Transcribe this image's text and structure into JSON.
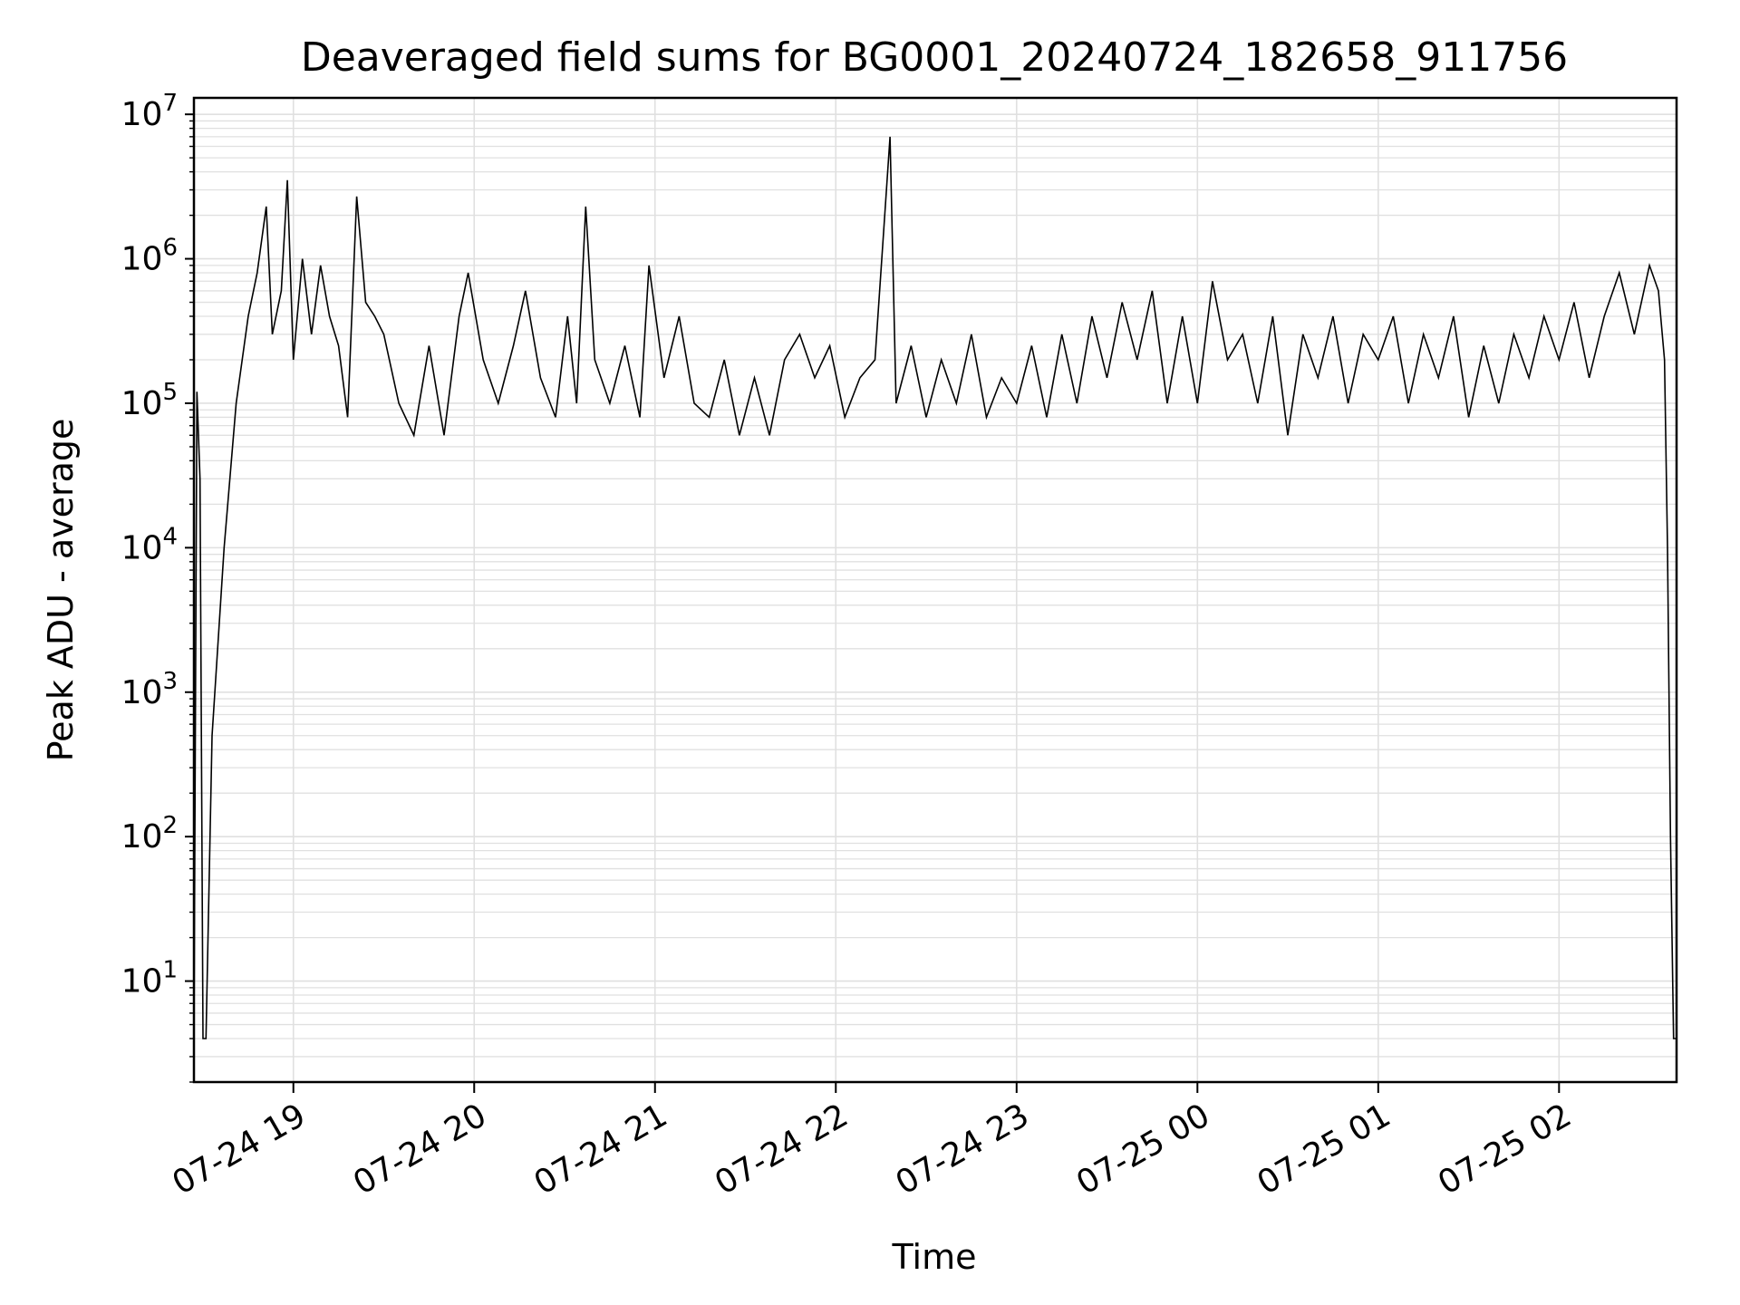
{
  "chart_data": {
    "type": "line",
    "title": "Deaveraged field sums for BG0001_20240724_182658_911756",
    "xlabel": "Time",
    "ylabel": "Peak ADU - average",
    "x_scale": "time",
    "y_scale": "log",
    "xlim": [
      "07-24 18:27",
      "07-25 02:39"
    ],
    "ylim": [
      2,
      13000000
    ],
    "grid": true,
    "line_color": "#000000",
    "grid_color": "#e0e0e0",
    "x_ticks": [
      "07-24 19",
      "07-24 20",
      "07-24 21",
      "07-24 22",
      "07-24 23",
      "07-25 00",
      "07-25 01",
      "07-25 02"
    ],
    "y_ticks": [
      {
        "base": "10",
        "exp": "1"
      },
      {
        "base": "10",
        "exp": "2"
      },
      {
        "base": "10",
        "exp": "3"
      },
      {
        "base": "10",
        "exp": "4"
      },
      {
        "base": "10",
        "exp": "5"
      },
      {
        "base": "10",
        "exp": "6"
      },
      {
        "base": "10",
        "exp": "7"
      }
    ],
    "series": [
      {
        "points": [
          [
            "07-24 18:27",
            4
          ],
          [
            "07-24 18:28",
            120000
          ],
          [
            "07-24 18:29",
            30000
          ],
          [
            "07-24 18:30",
            4
          ],
          [
            "07-24 18:31",
            4
          ],
          [
            "07-24 18:33",
            500
          ],
          [
            "07-24 18:37",
            10000
          ],
          [
            "07-24 18:41",
            100000
          ],
          [
            "07-24 18:45",
            400000
          ],
          [
            "07-24 18:48",
            800000
          ],
          [
            "07-24 18:51",
            2300000
          ],
          [
            "07-24 18:53",
            300000
          ],
          [
            "07-24 18:56",
            600000
          ],
          [
            "07-24 18:58",
            3500000
          ],
          [
            "07-24 19:00",
            200000
          ],
          [
            "07-24 19:03",
            1000000
          ],
          [
            "07-24 19:06",
            300000
          ],
          [
            "07-24 19:09",
            900000
          ],
          [
            "07-24 19:12",
            400000
          ],
          [
            "07-24 19:15",
            250000
          ],
          [
            "07-24 19:18",
            80000
          ],
          [
            "07-24 19:21",
            2700000
          ],
          [
            "07-24 19:24",
            500000
          ],
          [
            "07-24 19:27",
            400000
          ],
          [
            "07-24 19:30",
            300000
          ],
          [
            "07-24 19:35",
            100000
          ],
          [
            "07-24 19:40",
            60000
          ],
          [
            "07-24 19:45",
            250000
          ],
          [
            "07-24 19:50",
            60000
          ],
          [
            "07-24 19:55",
            400000
          ],
          [
            "07-24 19:58",
            800000
          ],
          [
            "07-24 20:03",
            200000
          ],
          [
            "07-24 20:08",
            100000
          ],
          [
            "07-24 20:13",
            250000
          ],
          [
            "07-24 20:17",
            600000
          ],
          [
            "07-24 20:22",
            150000
          ],
          [
            "07-24 20:27",
            80000
          ],
          [
            "07-24 20:31",
            400000
          ],
          [
            "07-24 20:34",
            100000
          ],
          [
            "07-24 20:37",
            2300000
          ],
          [
            "07-24 20:40",
            200000
          ],
          [
            "07-24 20:45",
            100000
          ],
          [
            "07-24 20:50",
            250000
          ],
          [
            "07-24 20:55",
            80000
          ],
          [
            "07-24 20:58",
            900000
          ],
          [
            "07-24 21:03",
            150000
          ],
          [
            "07-24 21:08",
            400000
          ],
          [
            "07-24 21:13",
            100000
          ],
          [
            "07-24 21:18",
            80000
          ],
          [
            "07-24 21:23",
            200000
          ],
          [
            "07-24 21:28",
            60000
          ],
          [
            "07-24 21:33",
            150000
          ],
          [
            "07-24 21:38",
            60000
          ],
          [
            "07-24 21:43",
            200000
          ],
          [
            "07-24 21:48",
            300000
          ],
          [
            "07-24 21:53",
            150000
          ],
          [
            "07-24 21:58",
            250000
          ],
          [
            "07-24 22:03",
            80000
          ],
          [
            "07-24 22:08",
            150000
          ],
          [
            "07-24 22:13",
            200000
          ],
          [
            "07-24 22:18",
            7000000
          ],
          [
            "07-24 22:20",
            100000
          ],
          [
            "07-24 22:25",
            250000
          ],
          [
            "07-24 22:30",
            80000
          ],
          [
            "07-24 22:35",
            200000
          ],
          [
            "07-24 22:40",
            100000
          ],
          [
            "07-24 22:45",
            300000
          ],
          [
            "07-24 22:50",
            80000
          ],
          [
            "07-24 22:55",
            150000
          ],
          [
            "07-24 23:00",
            100000
          ],
          [
            "07-24 23:05",
            250000
          ],
          [
            "07-24 23:10",
            80000
          ],
          [
            "07-24 23:15",
            300000
          ],
          [
            "07-24 23:20",
            100000
          ],
          [
            "07-24 23:25",
            400000
          ],
          [
            "07-24 23:30",
            150000
          ],
          [
            "07-24 23:35",
            500000
          ],
          [
            "07-24 23:40",
            200000
          ],
          [
            "07-24 23:45",
            600000
          ],
          [
            "07-24 23:50",
            100000
          ],
          [
            "07-24 23:55",
            400000
          ],
          [
            "07-25 00:00",
            100000
          ],
          [
            "07-25 00:05",
            700000
          ],
          [
            "07-25 00:10",
            200000
          ],
          [
            "07-25 00:15",
            300000
          ],
          [
            "07-25 00:20",
            100000
          ],
          [
            "07-25 00:25",
            400000
          ],
          [
            "07-25 00:30",
            60000
          ],
          [
            "07-25 00:35",
            300000
          ],
          [
            "07-25 00:40",
            150000
          ],
          [
            "07-25 00:45",
            400000
          ],
          [
            "07-25 00:50",
            100000
          ],
          [
            "07-25 00:55",
            300000
          ],
          [
            "07-25 01:00",
            200000
          ],
          [
            "07-25 01:05",
            400000
          ],
          [
            "07-25 01:10",
            100000
          ],
          [
            "07-25 01:15",
            300000
          ],
          [
            "07-25 01:20",
            150000
          ],
          [
            "07-25 01:25",
            400000
          ],
          [
            "07-25 01:30",
            80000
          ],
          [
            "07-25 01:35",
            250000
          ],
          [
            "07-25 01:40",
            100000
          ],
          [
            "07-25 01:45",
            300000
          ],
          [
            "07-25 01:50",
            150000
          ],
          [
            "07-25 01:55",
            400000
          ],
          [
            "07-25 02:00",
            200000
          ],
          [
            "07-25 02:05",
            500000
          ],
          [
            "07-25 02:10",
            150000
          ],
          [
            "07-25 02:15",
            400000
          ],
          [
            "07-25 02:20",
            800000
          ],
          [
            "07-25 02:25",
            300000
          ],
          [
            "07-25 02:30",
            900000
          ],
          [
            "07-25 02:33",
            600000
          ],
          [
            "07-25 02:35",
            200000
          ],
          [
            "07-25 02:36",
            10000
          ],
          [
            "07-25 02:37",
            100
          ],
          [
            "07-25 02:38",
            4
          ],
          [
            "07-25 02:39",
            4
          ]
        ]
      }
    ]
  }
}
